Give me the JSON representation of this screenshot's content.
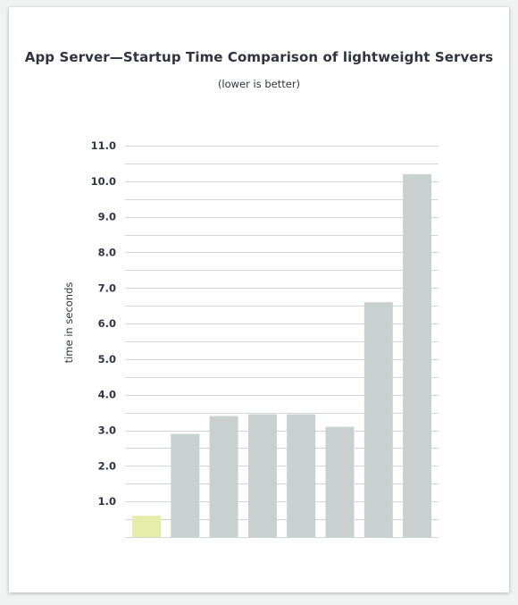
{
  "chart_data": {
    "type": "bar",
    "title": "App Server—Startup Time Comparison of lightweight Servers",
    "subtitle": "(lower is better)",
    "xlabel": "",
    "ylabel": "time in seconds",
    "ylim": [
      0,
      11
    ],
    "yticks": [
      "1.0",
      "2.0",
      "3.0",
      "4.0",
      "5.0",
      "6.0",
      "7.0",
      "8.0",
      "9.0",
      "10.0",
      "11.0"
    ],
    "minor_grid_step": 0.5,
    "grid": true,
    "legend": "none",
    "categories": [
      "",
      "",
      "",
      "",
      "",
      "",
      "",
      ""
    ],
    "values": [
      0.6,
      2.9,
      3.4,
      3.45,
      3.45,
      3.1,
      6.6,
      10.2
    ],
    "colors": {
      "highlight": "#e4eda9",
      "bar": "#c8d0d0",
      "grid": "#d2d6d6"
    }
  }
}
